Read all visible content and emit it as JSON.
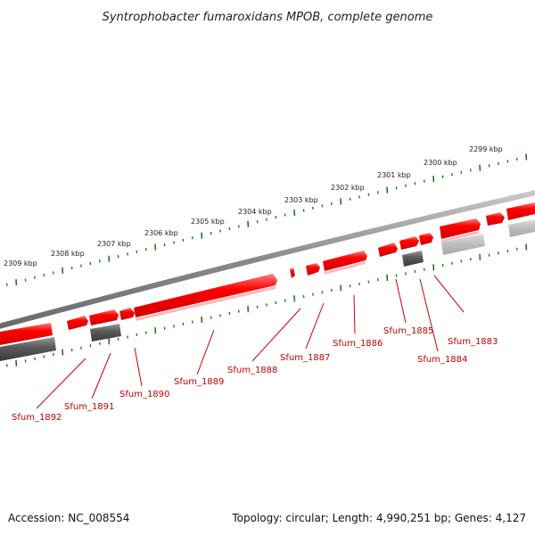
{
  "title": "Syntrophobacter fumaroxidans MPOB, complete genome",
  "footer": {
    "accession": "Accession: NC_008554",
    "summary": "Topology: circular; Length: 4,990,251 bp; Genes: 4,127"
  },
  "colors": {
    "forward_gene": "#ff0000",
    "forward_gene_shadow": "#ff9a9a",
    "reverse_gene": "#555555",
    "reverse_gene_light": "#bbbbbb",
    "backbone": "#888888",
    "tick_green": "#1e7a1e",
    "label_red": "#c00000"
  },
  "scale_labels": [
    "2299 kbp",
    "2300 kbp",
    "2301 kbp",
    "2302 kbp",
    "2303 kbp",
    "2304 kbp",
    "2305 kbp",
    "2306 kbp",
    "2307 kbp",
    "2308 kbp",
    "2309 kbp"
  ],
  "gene_labels": [
    "Sfum_1883",
    "Sfum_1884",
    "Sfum_1885",
    "Sfum_1886",
    "Sfum_1887",
    "Sfum_1888",
    "Sfum_1889",
    "Sfum_1890",
    "Sfum_1891",
    "Sfum_1892"
  ]
}
